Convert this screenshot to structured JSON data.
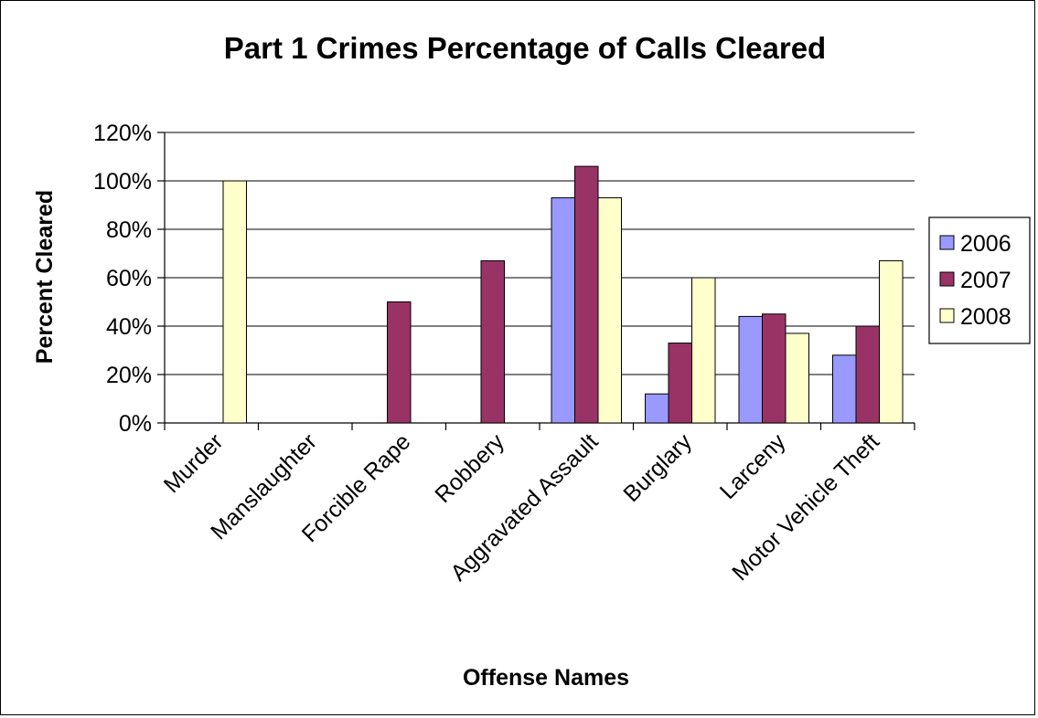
{
  "chart_data": {
    "type": "bar",
    "title": "Part 1 Crimes Percentage of Calls Cleared",
    "xlabel": "Offense Names",
    "ylabel": "Percent Cleared",
    "categories": [
      "Murder",
      "Manslaughter",
      "Forcible Rape",
      "Robbery",
      "Aggravated Assault",
      "Burglary",
      "Larceny",
      "Motor Vehicle Theft"
    ],
    "series": [
      {
        "name": "2006",
        "color": "#9999ff",
        "values": [
          0,
          0,
          0,
          0,
          93,
          12,
          44,
          28
        ]
      },
      {
        "name": "2007",
        "color": "#993366",
        "values": [
          0,
          0,
          50,
          67,
          106,
          33,
          45,
          40
        ]
      },
      {
        "name": "2008",
        "color": "#ffffcc",
        "values": [
          100,
          0,
          0,
          0,
          93,
          60,
          37,
          67
        ]
      }
    ],
    "ylim": [
      0,
      120
    ],
    "yticks": [
      0,
      20,
      40,
      60,
      80,
      100,
      120
    ],
    "ytick_labels": [
      "0%",
      "20%",
      "40%",
      "60%",
      "80%",
      "100%",
      "120%"
    ],
    "grid": true,
    "legend_position": "right"
  }
}
